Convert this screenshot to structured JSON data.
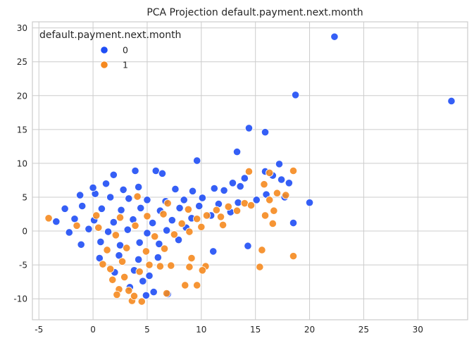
{
  "chart_data": {
    "type": "scatter",
    "title": "PCA Projection default.payment.next.month",
    "xlabel": "",
    "ylabel": "",
    "xlim": [
      -5.6,
      34.6
    ],
    "ylim": [
      -13.1,
      30.9
    ],
    "xticks": [
      -5,
      0,
      5,
      10,
      15,
      20,
      25,
      30
    ],
    "yticks": [
      -10,
      -5,
      0,
      5,
      10,
      15,
      20,
      25,
      30
    ],
    "grid": true,
    "legend": {
      "title": "default.payment.next.month",
      "placement": "top-left",
      "entries": [
        "0",
        "1"
      ]
    },
    "colors": {
      "0": "#1f4ef5",
      "1": "#f5891f",
      "grid": "#cccccc",
      "text": "#262626"
    },
    "series": [
      {
        "name": "0",
        "points": [
          [
            22.3,
            28.7
          ],
          [
            18.7,
            20.1
          ],
          [
            33.1,
            19.2
          ],
          [
            14.4,
            15.2
          ],
          [
            15.9,
            14.6
          ],
          [
            13.3,
            11.7
          ],
          [
            9.6,
            10.4
          ],
          [
            17.2,
            9.9
          ],
          [
            15.9,
            8.8
          ],
          [
            16.6,
            8.2
          ],
          [
            17.4,
            7.6
          ],
          [
            18.1,
            7.1
          ],
          [
            14.0,
            7.8
          ],
          [
            12.9,
            7.1
          ],
          [
            20.0,
            4.2
          ],
          [
            18.5,
            1.2
          ],
          [
            14.3,
            -2.2
          ],
          [
            11.1,
            -3.0
          ],
          [
            6.9,
            -9.3
          ],
          [
            5.6,
            -9.0
          ],
          [
            4.9,
            -9.5
          ],
          [
            5.8,
            8.9
          ],
          [
            6.4,
            8.5
          ],
          [
            3.9,
            8.9
          ],
          [
            1.9,
            8.3
          ],
          [
            11.2,
            6.3
          ],
          [
            12.1,
            6.0
          ],
          [
            13.6,
            6.6
          ],
          [
            16.0,
            5.4
          ],
          [
            17.7,
            5.0
          ],
          [
            -1.2,
            5.3
          ],
          [
            0.2,
            5.5
          ],
          [
            1.6,
            5.0
          ],
          [
            3.3,
            4.8
          ],
          [
            5.0,
            4.6
          ],
          [
            6.7,
            4.4
          ],
          [
            8.4,
            4.6
          ],
          [
            10.1,
            4.9
          ],
          [
            -2.6,
            3.3
          ],
          [
            -1.0,
            3.7
          ],
          [
            0.8,
            3.3
          ],
          [
            2.6,
            3.1
          ],
          [
            4.4,
            3.4
          ],
          [
            6.2,
            3.0
          ],
          [
            8.0,
            3.4
          ],
          [
            9.8,
            3.7
          ],
          [
            11.6,
            4.0
          ],
          [
            13.4,
            4.2
          ],
          [
            15.1,
            4.6
          ],
          [
            -3.4,
            1.4
          ],
          [
            -1.7,
            1.8
          ],
          [
            0.1,
            1.6
          ],
          [
            1.9,
            1.3
          ],
          [
            3.7,
            1.7
          ],
          [
            5.5,
            1.2
          ],
          [
            7.3,
            1.6
          ],
          [
            9.1,
            1.9
          ],
          [
            10.9,
            2.3
          ],
          [
            12.7,
            2.8
          ],
          [
            -2.2,
            -0.2
          ],
          [
            -0.4,
            0.3
          ],
          [
            1.4,
            -0.1
          ],
          [
            3.2,
            0.2
          ],
          [
            5.0,
            -0.3
          ],
          [
            6.8,
            0.1
          ],
          [
            8.6,
            0.5
          ],
          [
            -1.1,
            -2.0
          ],
          [
            0.7,
            -1.6
          ],
          [
            2.5,
            -2.1
          ],
          [
            4.3,
            -1.7
          ],
          [
            6.1,
            -1.9
          ],
          [
            7.9,
            -1.3
          ],
          [
            0.6,
            -4.0
          ],
          [
            2.4,
            -3.6
          ],
          [
            4.2,
            -4.2
          ],
          [
            6.0,
            -3.9
          ],
          [
            2.0,
            -6.1
          ],
          [
            3.8,
            -5.8
          ],
          [
            5.2,
            -6.6
          ],
          [
            3.4,
            -8.3
          ],
          [
            4.6,
            -7.4
          ],
          [
            1.2,
            7.0
          ],
          [
            0.0,
            6.4
          ],
          [
            2.8,
            6.1
          ],
          [
            4.2,
            6.5
          ],
          [
            7.6,
            6.2
          ],
          [
            9.2,
            5.9
          ]
        ]
      },
      {
        "name": "1",
        "points": [
          [
            14.4,
            8.8
          ],
          [
            16.3,
            8.6
          ],
          [
            18.5,
            8.9
          ],
          [
            15.8,
            6.9
          ],
          [
            17.0,
            5.6
          ],
          [
            17.8,
            5.3
          ],
          [
            16.3,
            4.6
          ],
          [
            14.0,
            4.1
          ],
          [
            16.7,
            3.0
          ],
          [
            15.9,
            2.3
          ],
          [
            16.6,
            1.1
          ],
          [
            13.3,
            3.0
          ],
          [
            14.6,
            3.8
          ],
          [
            11.4,
            3.1
          ],
          [
            10.5,
            2.3
          ],
          [
            9.6,
            1.8
          ],
          [
            11.8,
            2.1
          ],
          [
            15.6,
            -2.8
          ],
          [
            15.4,
            -5.3
          ],
          [
            18.5,
            -3.7
          ],
          [
            10.4,
            -5.2
          ],
          [
            10.1,
            -5.8
          ],
          [
            8.9,
            -5.3
          ],
          [
            8.5,
            -8.0
          ],
          [
            9.6,
            -8.0
          ],
          [
            9.1,
            -4.0
          ],
          [
            7.2,
            -5.1
          ],
          [
            6.2,
            -5.2
          ],
          [
            5.2,
            -5.0
          ],
          [
            6.8,
            -9.2
          ],
          [
            4.5,
            -10.4
          ],
          [
            3.6,
            -10.3
          ],
          [
            3.3,
            -8.8
          ],
          [
            2.4,
            -8.6
          ],
          [
            -4.1,
            1.9
          ],
          [
            -1.5,
            0.8
          ],
          [
            0.5,
            0.5
          ],
          [
            2.1,
            -0.6
          ],
          [
            3.9,
            0.8
          ],
          [
            5.7,
            -0.8
          ],
          [
            7.5,
            -0.5
          ],
          [
            8.9,
            -0.1
          ],
          [
            1.3,
            -2.8
          ],
          [
            3.1,
            -2.5
          ],
          [
            4.9,
            -3.0
          ],
          [
            6.6,
            -2.6
          ],
          [
            0.9,
            -4.9
          ],
          [
            2.7,
            -4.5
          ],
          [
            4.3,
            -6.0
          ],
          [
            1.8,
            -7.2
          ],
          [
            2.9,
            -6.8
          ],
          [
            5.0,
            2.2
          ],
          [
            6.5,
            2.5
          ],
          [
            8.2,
            1.1
          ],
          [
            10.0,
            0.6
          ],
          [
            12.0,
            0.9
          ],
          [
            2.5,
            2.0
          ],
          [
            0.3,
            2.3
          ],
          [
            4.1,
            5.1
          ],
          [
            6.9,
            4.1
          ],
          [
            8.8,
            3.2
          ],
          [
            12.5,
            3.6
          ],
          [
            2.2,
            -9.4
          ],
          [
            3.8,
            -9.6
          ],
          [
            1.6,
            -5.6
          ]
        ]
      }
    ]
  }
}
